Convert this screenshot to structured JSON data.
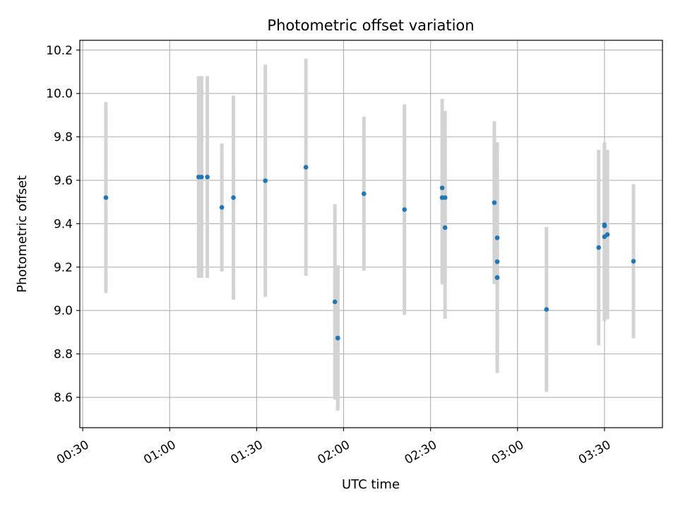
{
  "chart_data": {
    "type": "scatter",
    "title": "Photometric offset variation",
    "xlabel": "UTC time",
    "ylabel": "Photometric offset",
    "xlim": [
      "00:29",
      "03:50"
    ],
    "ylim": [
      8.46,
      10.245
    ],
    "x_ticks": [
      "00:30",
      "01:00",
      "01:30",
      "02:00",
      "02:30",
      "03:00",
      "03:30"
    ],
    "y_ticks": [
      8.6,
      8.8,
      9.0,
      9.2,
      9.4,
      9.6,
      9.8,
      10.0,
      10.2
    ],
    "y_tick_labels": [
      "8.6",
      "8.8",
      "9.0",
      "9.2",
      "9.4",
      "9.6",
      "9.8",
      "10.0",
      "10.2"
    ],
    "grid": true,
    "marker_color": "#1f77b4",
    "errorbar_color": "#d3d3d3",
    "points": [
      {
        "x": "00:38",
        "y": 9.52,
        "err": 0.44
      },
      {
        "x": "01:10",
        "y": 9.615,
        "err": 0.465
      },
      {
        "x": "01:11",
        "y": 9.615,
        "err": 0.465
      },
      {
        "x": "01:13",
        "y": 9.615,
        "err": 0.465
      },
      {
        "x": "01:18",
        "y": 9.475,
        "err": 0.295
      },
      {
        "x": "01:22",
        "y": 9.52,
        "err": 0.47
      },
      {
        "x": "01:33",
        "y": 9.598,
        "err": 0.535
      },
      {
        "x": "01:47",
        "y": 9.66,
        "err": 0.5
      },
      {
        "x": "01:57",
        "y": 9.04,
        "err": 0.45
      },
      {
        "x": "01:58",
        "y": 8.873,
        "err": 0.335
      },
      {
        "x": "01:58",
        "y": 8.873,
        "err": 0.335
      },
      {
        "x": "02:07",
        "y": 9.538,
        "err": 0.355
      },
      {
        "x": "02:21",
        "y": 9.465,
        "err": 0.485
      },
      {
        "x": "02:34",
        "y": 9.565,
        "err": 0.41
      },
      {
        "x": "02:34",
        "y": 9.52,
        "err": 0.4
      },
      {
        "x": "02:35",
        "y": 9.52,
        "err": 0.4
      },
      {
        "x": "02:35",
        "y": 9.382,
        "err": 0.42
      },
      {
        "x": "02:52",
        "y": 9.497,
        "err": 0.375
      },
      {
        "x": "02:53",
        "y": 9.335,
        "err": 0.44
      },
      {
        "x": "02:53",
        "y": 9.225,
        "err": 0.45
      },
      {
        "x": "02:53",
        "y": 9.152,
        "err": 0.44
      },
      {
        "x": "02:53",
        "y": 9.152,
        "err": 0.44
      },
      {
        "x": "03:10",
        "y": 9.005,
        "err": 0.38
      },
      {
        "x": "03:28",
        "y": 9.29,
        "err": 0.45
      },
      {
        "x": "03:30",
        "y": 9.39,
        "err": 0.37
      },
      {
        "x": "03:30",
        "y": 9.395,
        "err": 0.38
      },
      {
        "x": "03:30",
        "y": 9.34,
        "err": 0.39
      },
      {
        "x": "03:31",
        "y": 9.35,
        "err": 0.39
      },
      {
        "x": "03:40",
        "y": 9.227,
        "err": 0.355
      }
    ]
  }
}
